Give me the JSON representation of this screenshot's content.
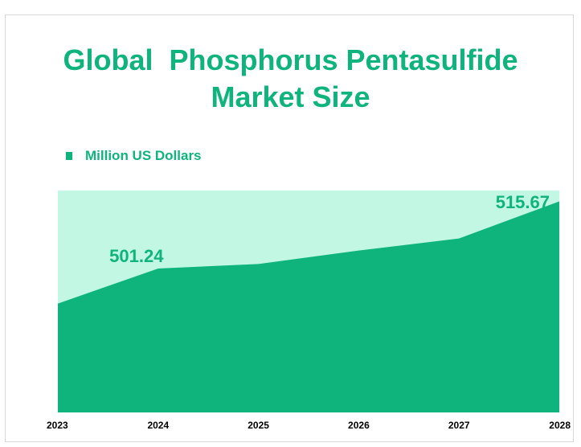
{
  "colors": {
    "title": "#0eb47c",
    "area": "#0eb47c",
    "plot_background": "#c2f7e4",
    "tick_label": "#000000",
    "data_label": "#0eb47c",
    "frame": "#d9d9d9"
  },
  "chart_data": {
    "type": "area",
    "title": "Global  Phosphorus Pentasulfide\nMarket Size",
    "legend": {
      "position": "top-left",
      "entries": [
        "Million US Dollars"
      ]
    },
    "x": [
      "2023",
      "2024",
      "2025",
      "2026",
      "2027",
      "2028"
    ],
    "series": [
      {
        "name": "Million US Dollars",
        "values": [
          493.7,
          501.24,
          502.2,
          505.1,
          507.7,
          515.67
        ]
      }
    ],
    "data_labels": [
      {
        "x": "2024",
        "text": "501.24"
      },
      {
        "x": "2028",
        "text": "515.67"
      }
    ],
    "ylim": [
      470.3,
      518.0
    ],
    "grid": false,
    "xlabel": "",
    "ylabel": ""
  }
}
